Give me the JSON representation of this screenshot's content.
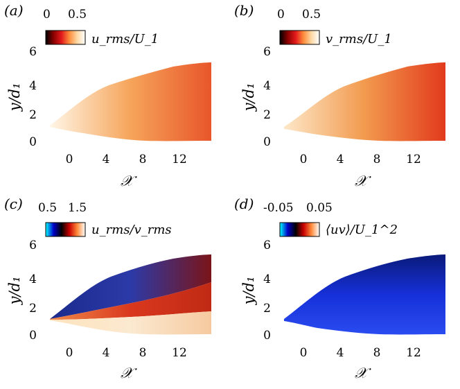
{
  "chart_data": [
    {
      "type": "heatmap",
      "panel_label": "(a)",
      "colorbar": {
        "label": "u_rms/U_1",
        "tick_labels": [
          "0",
          "0.5"
        ],
        "range": [
          0,
          0.5
        ],
        "colors": [
          "#000000",
          "#8b0000",
          "#e31a1c",
          "#fd8d3c",
          "#fed9a6",
          "#ffffff"
        ]
      },
      "xlabel": "𝒳",
      "ylabel": "y/d₁",
      "x_ticks": [
        "0",
        "4",
        "8",
        "12"
      ],
      "y_ticks": [
        "0",
        "2",
        "4",
        "6"
      ],
      "xlim": [
        -3,
        15
      ],
      "ylim": [
        0,
        6
      ],
      "field": {
        "core": "#fff6e6",
        "mid": "#f6a45a",
        "far": "#e8562a"
      }
    },
    {
      "type": "heatmap",
      "panel_label": "(b)",
      "colorbar": {
        "label": "v_rms/U_1",
        "tick_labels": [
          "0",
          "0.5"
        ],
        "range": [
          0,
          0.5
        ],
        "colors": [
          "#000000",
          "#8b0000",
          "#e31a1c",
          "#fd8d3c",
          "#fed9a6",
          "#ffffff"
        ]
      },
      "xlabel": "𝒳",
      "ylabel": "y/d₁",
      "x_ticks": [
        "0",
        "4",
        "8",
        "12"
      ],
      "y_ticks": [
        "0",
        "2",
        "4",
        "6"
      ],
      "xlim": [
        -3,
        15
      ],
      "ylim": [
        0,
        6
      ],
      "field": {
        "core": "#fde7c8",
        "mid": "#f29a4e",
        "far": "#e23a1c"
      }
    },
    {
      "type": "heatmap",
      "panel_label": "(c)",
      "colorbar": {
        "label": "u_rms/v_rms",
        "tick_labels": [
          "0.5",
          "1.5"
        ],
        "range": [
          0.5,
          1.5
        ],
        "colors": [
          "#00ffff",
          "#0000c8",
          "#000000",
          "#c80000",
          "#ff8c3c",
          "#ffffff"
        ]
      },
      "xlabel": "𝒳",
      "ylabel": "y/d₁",
      "x_ticks": [
        "0",
        "4",
        "8",
        "12"
      ],
      "y_ticks": [
        "0",
        "2",
        "4",
        "6"
      ],
      "xlim": [
        -3,
        15
      ],
      "ylim": [
        0,
        6
      ],
      "field": {
        "upper": "#1a2a8c",
        "mid": "#d9381e",
        "core": "#fde3bd"
      }
    },
    {
      "type": "heatmap",
      "panel_label": "(d)",
      "colorbar": {
        "label": "⟨uv⟩/U_1^2",
        "tick_labels": [
          "-0.05",
          "0.05"
        ],
        "range": [
          -0.05,
          0.05
        ],
        "colors": [
          "#00ffff",
          "#0000c8",
          "#000000",
          "#c80000",
          "#ff8c3c",
          "#ffffff"
        ]
      },
      "xlabel": "𝒳",
      "ylabel": "y/d₁",
      "x_ticks": [
        "0",
        "4",
        "8",
        "12"
      ],
      "y_ticks": [
        "0",
        "2",
        "4",
        "6"
      ],
      "xlim": [
        -3,
        15
      ],
      "ylim": [
        0,
        6
      ],
      "field": {
        "upper": "#0a1a7a",
        "mid": "#1630d8",
        "core": "#2a4cf0"
      }
    }
  ]
}
